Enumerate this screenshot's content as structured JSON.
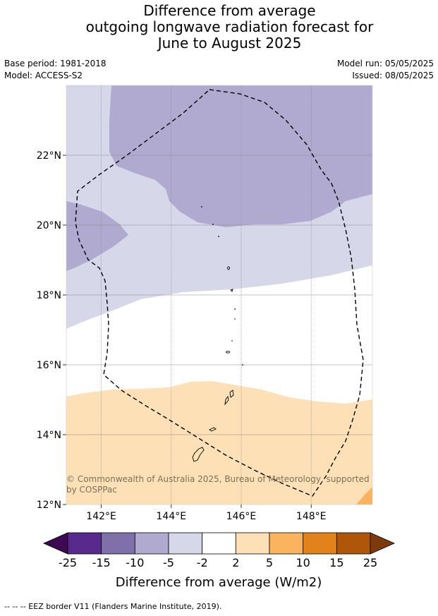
{
  "title_lines": [
    "Difference from average",
    "outgoing longwave radiation forecast for",
    "June to August 2025"
  ],
  "left_meta": [
    "Base period: 1981-2018",
    "Model: ACCESS-S2"
  ],
  "right_meta": [
    "Model run: 05/05/2025",
    "Issued: 08/05/2025"
  ],
  "map": {
    "lon_ticks": [
      "142°E",
      "144°E",
      "146°E",
      "148°E"
    ],
    "lat_ticks": [
      "22°N",
      "20°N",
      "18°N",
      "16°N",
      "14°N",
      "12°N"
    ],
    "lon_values": [
      142,
      144,
      146,
      148
    ],
    "lat_values": [
      22,
      20,
      18,
      16,
      14,
      12
    ],
    "extent": {
      "lon_min": 141,
      "lon_max": 149.75,
      "lat_min": 12,
      "lat_max": 24
    },
    "copyright": "© Commonwealth of Australia 2025, Bureau of Meteorology, supported by COSPPac"
  },
  "colorbar": {
    "labels": [
      "-25",
      "-15",
      "-10",
      "-5",
      "-2",
      "2",
      "5",
      "10",
      "15",
      "25"
    ],
    "colors": [
      "#582a8e",
      "#7f70ab",
      "#b0aad1",
      "#d7d7ea",
      "#ffffff",
      "#fde0b6",
      "#fbb35e",
      "#e1821b",
      "#b0560a"
    ],
    "under_color": "#3d0a52",
    "over_color": "#7d3a0c",
    "title": "Difference from average (W/m2)"
  },
  "colors": {
    "light_purple": "#d7d7ea",
    "mid_purple": "#b0aad1",
    "light_orange": "#fde0b6",
    "orange": "#fbb35e"
  },
  "footnote": "--  --  -- EEZ border V11 (Flanders Marine Institute, 2019)."
}
